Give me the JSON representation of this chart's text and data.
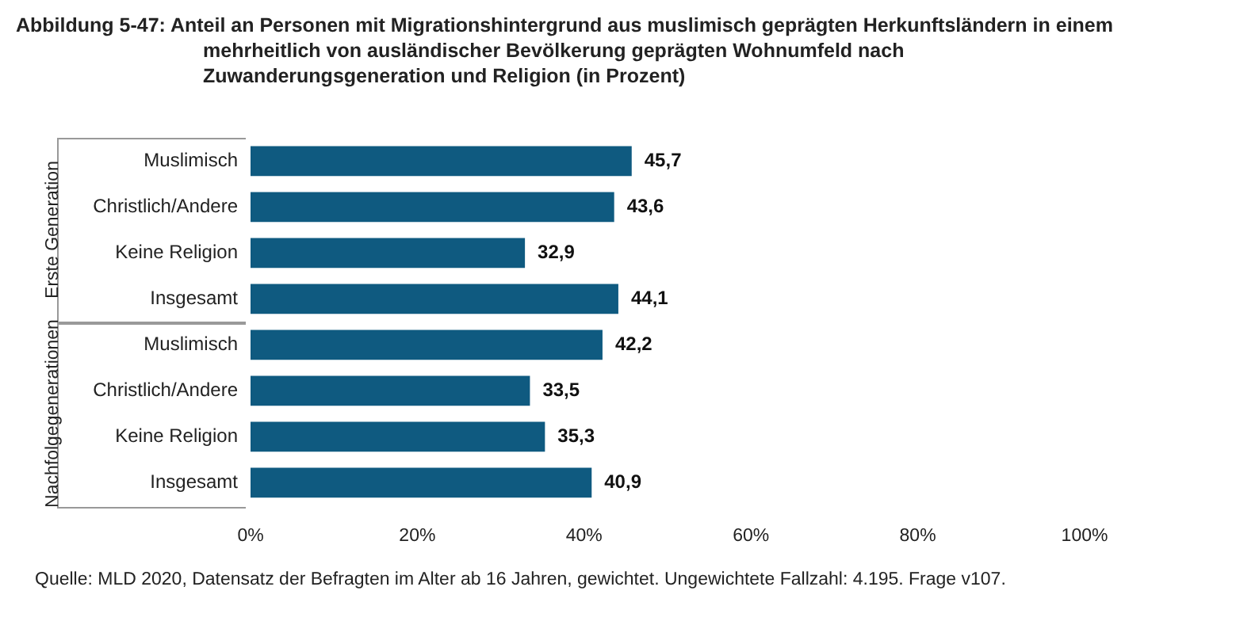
{
  "chart_data": {
    "type": "bar",
    "orientation": "horizontal",
    "title": "Abbildung 5-47:  Anteil an Personen mit Migrationshintergrund aus muslimisch geprägten Herkunftsländern in einem mehrheitlich von ausländischer Bevölkerung geprägten Wohnumfeld nach Zuwanderungsgeneration und Religion (in Prozent)",
    "categories": [
      "Muslimisch",
      "Christlich/Andere",
      "Keine Religion",
      "Insgesamt",
      "Muslimisch",
      "Christlich/Andere",
      "Keine Religion",
      "Insgesamt"
    ],
    "values": [
      45.7,
      43.6,
      32.9,
      44.1,
      42.2,
      33.5,
      35.3,
      40.9
    ],
    "value_labels": [
      "45,7",
      "43,6",
      "32,9",
      "44,1",
      "42,2",
      "33,5",
      "35,3",
      "40,9"
    ],
    "color": "#0f5a80",
    "xlim": [
      0,
      100
    ],
    "xticks": [
      {
        "value": 0,
        "label": "0%"
      },
      {
        "value": 20,
        "label": "20%"
      },
      {
        "value": 40,
        "label": "40%"
      },
      {
        "value": 60,
        "label": "60%"
      },
      {
        "value": 80,
        "label": "80%"
      },
      {
        "value": 100,
        "label": "100%"
      }
    ],
    "grid": false,
    "legend": false,
    "annotations": [
      "Erste Generation",
      "Nachfolgegenerationen",
      "Quelle: MLD 2020, Datensatz der Befragten im Alter ab 16 Jahren, gewichtet. Ungewichtete Fallzahl: 4.195. Frage v107."
    ]
  }
}
